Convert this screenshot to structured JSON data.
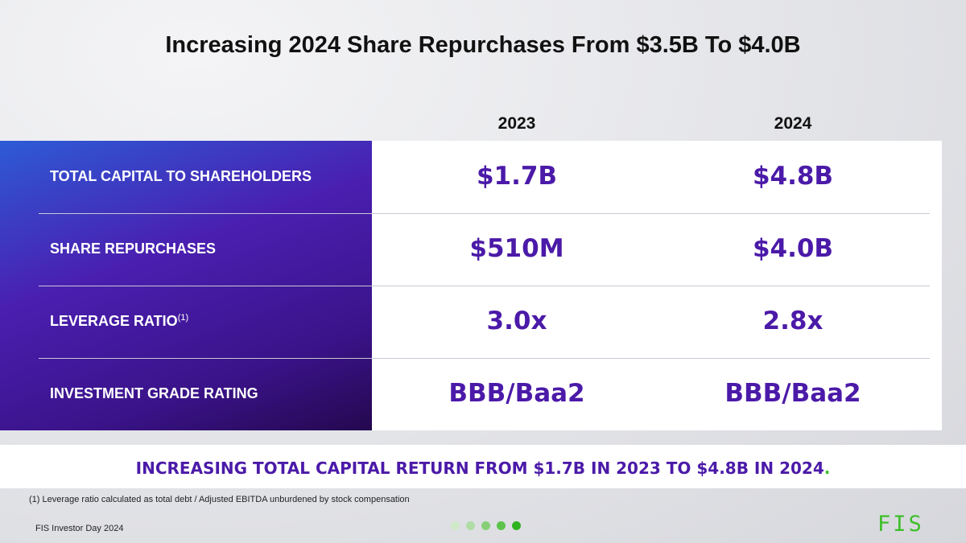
{
  "header": {
    "title": "Increasing 2024 Share Repurchases From $3.5B To $4.0B"
  },
  "table": {
    "columns": [
      "2023",
      "2024"
    ],
    "rows": [
      {
        "label": "TOTAL CAPITAL TO SHAREHOLDERS",
        "values": [
          "$1.7B",
          "$4.8B"
        ]
      },
      {
        "label": "SHARE REPURCHASES",
        "values": [
          "$510M",
          "$4.0B"
        ]
      },
      {
        "label": "LEVERAGE RATIO",
        "note": "(1)",
        "values": [
          "3.0x",
          "2.8x"
        ]
      },
      {
        "label": "INVESTMENT GRADE RATING",
        "values": [
          "BBB/Baa2",
          "BBB/Baa2"
        ]
      }
    ]
  },
  "banner": {
    "text": "INCREASING TOTAL CAPITAL RETURN FROM $1.7B IN 2023 TO $4.8B IN 2024",
    "period": "."
  },
  "footnote": "(1) Leverage ratio calculated as total debt / Adjusted EBITDA unburdened by stock compensation",
  "footer": {
    "text": "FIS Investor Day 2024",
    "logo": "FIS"
  }
}
